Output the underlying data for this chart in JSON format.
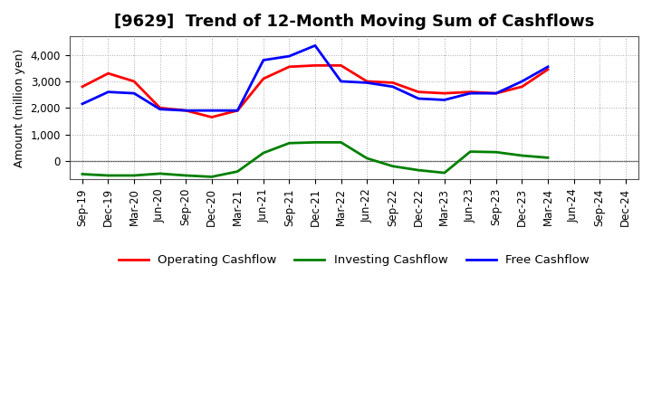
{
  "title": "[9629]  Trend of 12-Month Moving Sum of Cashflows",
  "ylabel": "Amount (million yen)",
  "x_labels": [
    "Sep-19",
    "Dec-19",
    "Mar-20",
    "Jun-20",
    "Sep-20",
    "Dec-20",
    "Mar-21",
    "Jun-21",
    "Sep-21",
    "Dec-21",
    "Mar-22",
    "Jun-22",
    "Sep-22",
    "Dec-22",
    "Mar-23",
    "Jun-23",
    "Sep-23",
    "Dec-23",
    "Mar-24",
    "Jun-24",
    "Sep-24",
    "Dec-24"
  ],
  "operating": [
    2800,
    3300,
    3000,
    2000,
    1900,
    1650,
    1900,
    3100,
    3550,
    3600,
    3600,
    3000,
    2950,
    2600,
    2550,
    2600,
    2550,
    2800,
    3450,
    null,
    null,
    null
  ],
  "investing": [
    -500,
    -550,
    -550,
    -480,
    -550,
    -600,
    -400,
    300,
    670,
    700,
    700,
    100,
    -200,
    -350,
    -450,
    350,
    330,
    200,
    120,
    null,
    null,
    null
  ],
  "free": [
    2150,
    2600,
    2550,
    1950,
    1900,
    1900,
    1900,
    3800,
    3950,
    4350,
    3000,
    2950,
    2800,
    2350,
    2300,
    2550,
    2550,
    3000,
    3550,
    null,
    null,
    null
  ],
  "operating_color": "#ff0000",
  "investing_color": "#008000",
  "free_color": "#0000ff",
  "ylim": [
    -700,
    4700
  ],
  "yticks": [
    0,
    1000,
    2000,
    3000,
    4000
  ],
  "bg_color": "#ffffff",
  "grid_color": "#aaaaaa",
  "linewidth": 2.0,
  "title_fontsize": 13,
  "axis_fontsize": 8.5,
  "ylabel_fontsize": 9
}
